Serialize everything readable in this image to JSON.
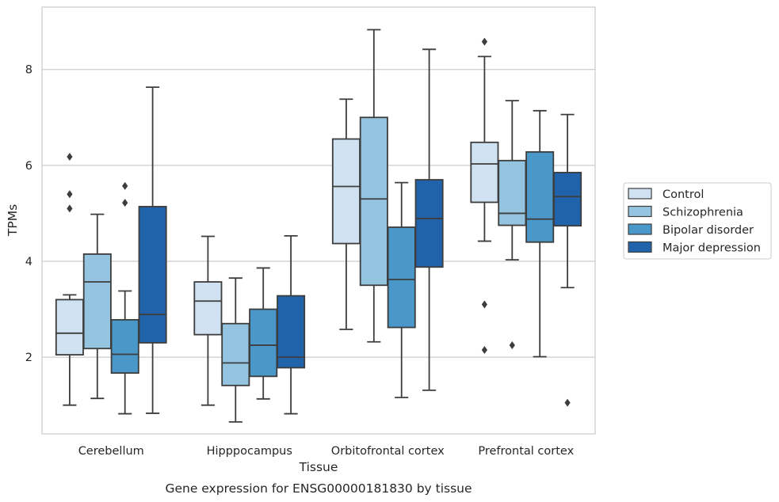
{
  "chart_data": {
    "type": "boxplot",
    "caption": "Gene expression for ENSG00000181830 by tissue",
    "xlabel": "Tissue",
    "ylabel": "TPMs",
    "ylim": [
      0.4,
      9.3
    ],
    "yticks": [
      2,
      4,
      6,
      8
    ],
    "grid": "horizontal",
    "legend_position": "right",
    "categories": [
      "Cerebellum",
      "Hipppocampus",
      "Orbitofrontal cortex",
      "Prefrontal cortex"
    ],
    "series": [
      {
        "name": "Control",
        "color": "#d0e1f2",
        "boxes": [
          {
            "whislo": 1.0,
            "q1": 2.05,
            "med": 2.5,
            "q3": 3.2,
            "whishi": 3.3,
            "fliers": [
              6.18,
              5.4,
              5.1
            ]
          },
          {
            "whislo": 1.0,
            "q1": 2.47,
            "med": 3.17,
            "q3": 3.57,
            "whishi": 4.52,
            "fliers": []
          },
          {
            "whislo": 2.58,
            "q1": 4.37,
            "med": 5.56,
            "q3": 6.55,
            "whishi": 7.38,
            "fliers": []
          },
          {
            "whislo": 4.42,
            "q1": 5.23,
            "med": 6.03,
            "q3": 6.48,
            "whishi": 8.27,
            "fliers": [
              8.58,
              3.1,
              2.15
            ]
          }
        ]
      },
      {
        "name": "Schizophrenia",
        "color": "#94c4df",
        "boxes": [
          {
            "whislo": 1.14,
            "q1": 2.18,
            "med": 3.57,
            "q3": 4.15,
            "whishi": 4.98,
            "fliers": []
          },
          {
            "whislo": 0.65,
            "q1": 1.41,
            "med": 1.88,
            "q3": 2.7,
            "whishi": 3.65,
            "fliers": []
          },
          {
            "whislo": 2.32,
            "q1": 3.5,
            "med": 5.3,
            "q3": 7.0,
            "whishi": 8.83,
            "fliers": []
          },
          {
            "whislo": 4.03,
            "q1": 4.75,
            "med": 5.0,
            "q3": 6.1,
            "whishi": 7.35,
            "fliers": [
              2.25
            ]
          }
        ]
      },
      {
        "name": "Bipolar disorder",
        "color": "#4a98c9",
        "boxes": [
          {
            "whislo": 0.82,
            "q1": 1.67,
            "med": 2.06,
            "q3": 2.78,
            "whishi": 3.38,
            "fliers": [
              5.57,
              5.22
            ]
          },
          {
            "whislo": 1.13,
            "q1": 1.6,
            "med": 2.25,
            "q3": 3.0,
            "whishi": 3.86,
            "fliers": []
          },
          {
            "whislo": 1.16,
            "q1": 2.62,
            "med": 3.62,
            "q3": 4.71,
            "whishi": 5.64,
            "fliers": []
          },
          {
            "whislo": 2.01,
            "q1": 4.4,
            "med": 4.88,
            "q3": 6.28,
            "whishi": 7.14,
            "fliers": []
          }
        ]
      },
      {
        "name": "Major depression",
        "color": "#2163aa",
        "boxes": [
          {
            "whislo": 0.83,
            "q1": 2.3,
            "med": 2.89,
            "q3": 5.14,
            "whishi": 7.63,
            "fliers": []
          },
          {
            "whislo": 0.82,
            "q1": 1.78,
            "med": 2.0,
            "q3": 3.28,
            "whishi": 4.53,
            "fliers": []
          },
          {
            "whislo": 1.31,
            "q1": 3.88,
            "med": 4.89,
            "q3": 5.7,
            "whishi": 8.42,
            "fliers": []
          },
          {
            "whislo": 3.45,
            "q1": 4.74,
            "med": 5.35,
            "q3": 5.85,
            "whishi": 7.06,
            "fliers": [
              1.05
            ]
          }
        ]
      }
    ]
  }
}
